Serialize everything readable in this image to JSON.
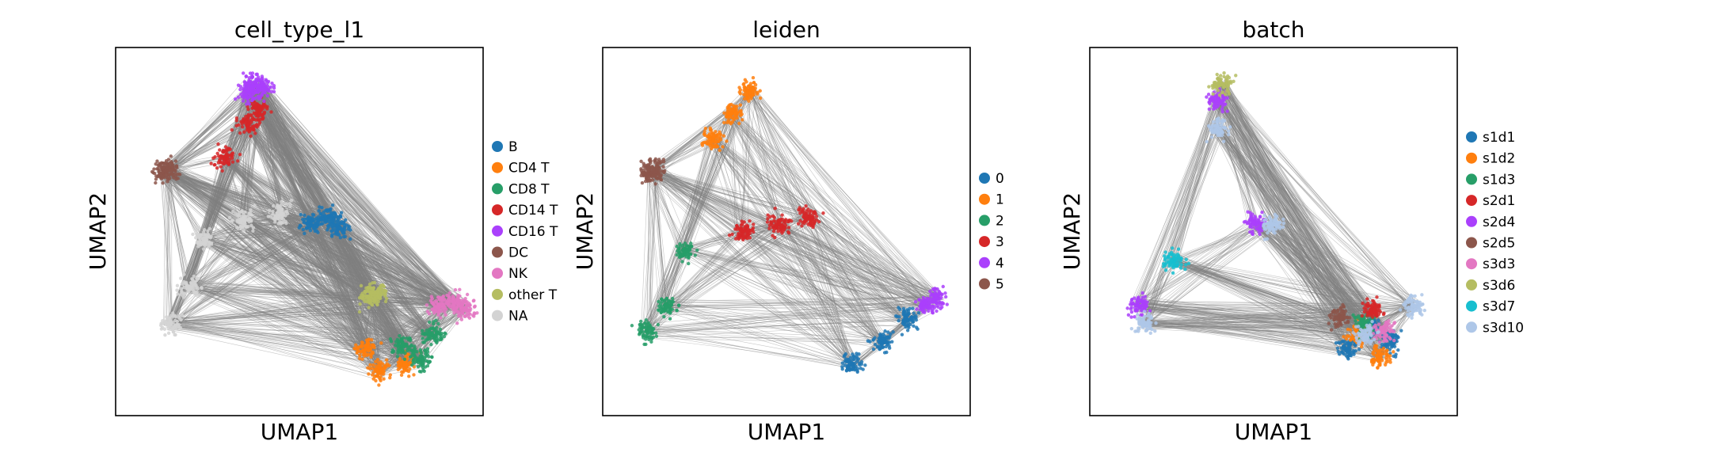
{
  "chart_data": [
    {
      "type": "scatter",
      "title": "cell_type_l1",
      "xlabel": "UMAP1",
      "ylabel": "UMAP2",
      "grid": false,
      "legend_position": "right",
      "series": [
        {
          "name": "B",
          "color": "#1f77b4",
          "x": [
            5.3,
            5.8,
            6.1
          ],
          "y": [
            5.2,
            5.4,
            5.1
          ]
        },
        {
          "name": "CD4 T",
          "color": "#ff7f0e",
          "x": [
            6.8,
            7.2,
            7.9
          ],
          "y": [
            1.8,
            1.2,
            1.4
          ]
        },
        {
          "name": "CD8 T",
          "color": "#279e68",
          "x": [
            7.8,
            8.3,
            8.6
          ],
          "y": [
            1.9,
            1.5,
            2.2
          ]
        },
        {
          "name": "CD14 T",
          "color": "#d62728",
          "x": [
            3.0,
            3.6,
            3.9
          ],
          "y": [
            7.0,
            7.9,
            8.3
          ]
        },
        {
          "name": "CD16 T",
          "color": "#aa40fc",
          "x": [
            3.6,
            3.8,
            4.0
          ],
          "y": [
            8.8,
            9.0,
            8.9
          ]
        },
        {
          "name": "DC",
          "color": "#8c564b",
          "x": [
            1.3,
            1.4
          ],
          "y": [
            6.6,
            6.7
          ]
        },
        {
          "name": "NK",
          "color": "#e377c2",
          "x": [
            8.8,
            9.2,
            9.5
          ],
          "y": [
            3.0,
            3.1,
            2.9
          ]
        },
        {
          "name": "other T",
          "color": "#b5bd61",
          "x": [
            6.9,
            7.1
          ],
          "y": [
            3.2,
            3.3
          ]
        },
        {
          "name": "NA",
          "color": "#d3d3d3",
          "x": [
            1.5,
            2.0,
            2.4,
            3.5,
            4.5
          ],
          "y": [
            2.5,
            3.5,
            4.8,
            5.3,
            5.5
          ]
        }
      ]
    },
    {
      "type": "scatter",
      "title": "leiden",
      "xlabel": "UMAP1",
      "ylabel": "UMAP2",
      "grid": false,
      "legend_position": "right",
      "series": [
        {
          "name": "0",
          "color": "#1f77b4",
          "x": [
            6.8,
            7.6,
            8.3
          ],
          "y": [
            1.4,
            2.0,
            2.6
          ]
        },
        {
          "name": "1",
          "color": "#ff7f0e",
          "x": [
            3.0,
            3.5,
            4.0
          ],
          "y": [
            7.5,
            8.2,
            8.8
          ]
        },
        {
          "name": "2",
          "color": "#279e68",
          "x": [
            1.2,
            1.7,
            2.2
          ],
          "y": [
            2.3,
            3.0,
            4.5
          ]
        },
        {
          "name": "3",
          "color": "#d62728",
          "x": [
            3.8,
            4.8,
            5.6
          ],
          "y": [
            5.0,
            5.2,
            5.4
          ]
        },
        {
          "name": "4",
          "color": "#aa40fc",
          "x": [
            8.8,
            9.1
          ],
          "y": [
            3.0,
            3.2
          ]
        },
        {
          "name": "5",
          "color": "#8c564b",
          "x": [
            1.3,
            1.4
          ],
          "y": [
            6.6,
            6.7
          ]
        }
      ]
    },
    {
      "type": "scatter",
      "title": "batch",
      "xlabel": "UMAP1",
      "ylabel": "UMAP2",
      "grid": false,
      "legend_position": "right",
      "series": [
        {
          "name": "s1d1",
          "color": "#1f77b4",
          "x": [
            7.0,
            7.6,
            8.2
          ],
          "y": [
            1.8,
            2.4,
            2.0
          ]
        },
        {
          "name": "s1d2",
          "color": "#ff7f0e",
          "x": [
            7.3,
            7.9
          ],
          "y": [
            2.2,
            1.6
          ]
        },
        {
          "name": "s1d3",
          "color": "#279e68",
          "x": [
            7.5
          ],
          "y": [
            2.5
          ]
        },
        {
          "name": "s2d1",
          "color": "#d62728",
          "x": [
            7.7
          ],
          "y": [
            2.9
          ]
        },
        {
          "name": "s2d4",
          "color": "#aa40fc",
          "x": [
            1.3,
            4.5,
            3.5
          ],
          "y": [
            3.0,
            5.2,
            8.6
          ]
        },
        {
          "name": "s2d5",
          "color": "#8c564b",
          "x": [
            6.8
          ],
          "y": [
            2.7
          ]
        },
        {
          "name": "s3d3",
          "color": "#e377c2",
          "x": [
            8.0
          ],
          "y": [
            2.3
          ]
        },
        {
          "name": "s3d6",
          "color": "#b5bd61",
          "x": [
            3.6
          ],
          "y": [
            9.0
          ]
        },
        {
          "name": "s3d7",
          "color": "#17becf",
          "x": [
            2.3
          ],
          "y": [
            4.2
          ]
        },
        {
          "name": "s3d10",
          "color": "#aec7e8",
          "x": [
            1.5,
            3.5,
            5.0,
            8.8,
            7.5
          ],
          "y": [
            2.5,
            7.8,
            5.2,
            3.0,
            2.2
          ]
        }
      ]
    }
  ]
}
